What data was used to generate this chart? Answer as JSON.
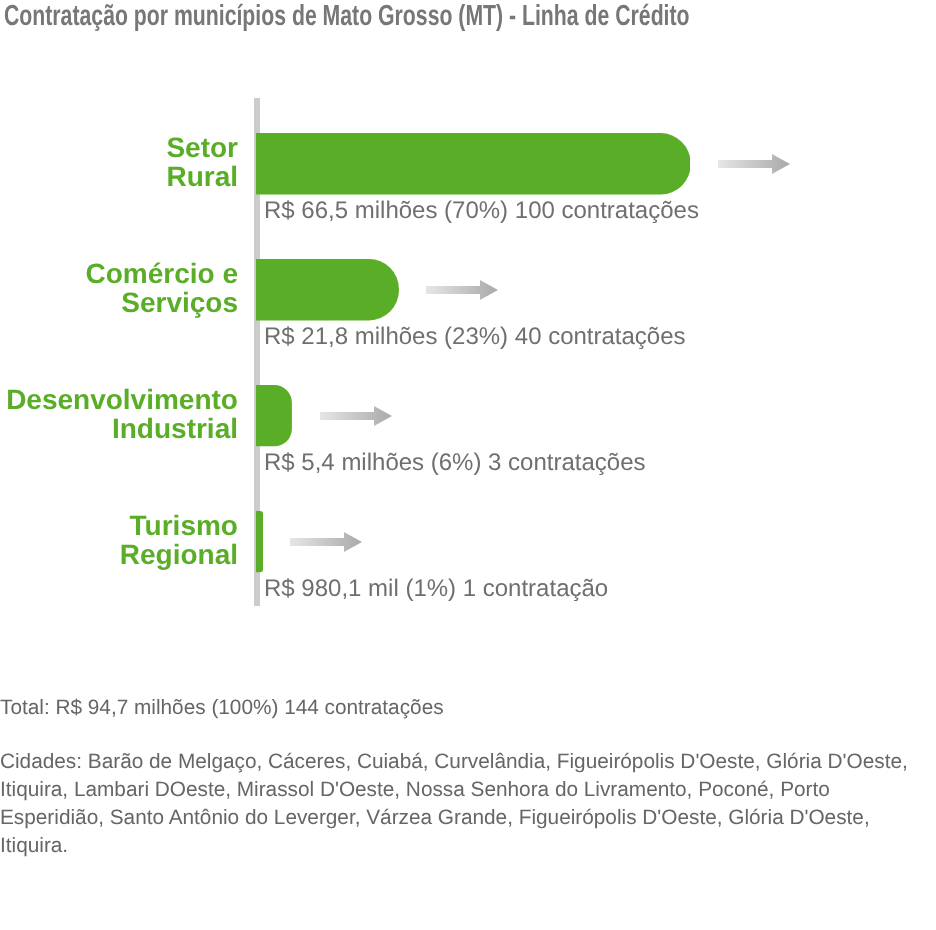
{
  "chart_data": {
    "type": "bar",
    "orientation": "horizontal",
    "title": "Contratação por municípios de Mato Grosso (MT) - Linha de Crédito",
    "categories": [
      "Setor Rural",
      "Comércio e Serviços",
      "Desenvolvimento Industrial",
      "Turismo Regional"
    ],
    "values": [
      66.5,
      21.8,
      5.4,
      0.9801
    ],
    "value_labels": [
      "R$ 66,5 milhões (70%) 100 contratações",
      "R$ 21,8 milhões (23%) 40 contratações",
      "R$ 5,4 milhões (6%) 3 contratações",
      "R$ 980,1 mil (1%) 1 contratação"
    ],
    "color": "#5aad27",
    "legend": false,
    "tick_labels": "y",
    "annotations": [
      "Total: R$ 94,7 milhões (100%) 144 contratações",
      "Cidades: Barão de Melgaço, Cáceres, Cuiabá, Curvelândia, Figueirópolis D'Oeste, Glória D'Oeste, Itiquira, Lambari DOeste, Mirassol D'Oeste, Nossa Senhora do Livramento, Poconé, Porto Esperidião, Santo Antônio do Leverger, Várzea Grande, Figueirópolis D'Oeste, Glória D'Oeste, Itiquira."
    ]
  }
}
